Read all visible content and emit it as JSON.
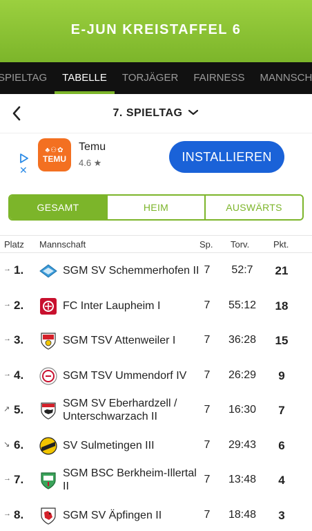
{
  "header": {
    "title": "E-JUN KREISTAFFEL 6"
  },
  "tabs": [
    {
      "label": "SPIELTAG",
      "active": false
    },
    {
      "label": "TABELLE",
      "active": true
    },
    {
      "label": "TORJÄGER",
      "active": false
    },
    {
      "label": "FAIRNESS",
      "active": false
    },
    {
      "label": "MANNSCHAFTEN",
      "active": false
    }
  ],
  "matchday": {
    "label": "7. SPIELTAG",
    "back_icon": "chevron-left-icon",
    "dropdown_icon": "chevron-down-icon"
  },
  "ad": {
    "app_name": "Temu",
    "logo_text": "TEMU",
    "rating": "4.6 ★",
    "cta": "INSTALLIEREN"
  },
  "segments": [
    {
      "label": "GESAMT",
      "active": true
    },
    {
      "label": "HEIM",
      "active": false
    },
    {
      "label": "AUSWÄRTS",
      "active": false
    }
  ],
  "table": {
    "headers": {
      "platz": "Platz",
      "mannschaft": "Mannschaft",
      "sp": "Sp.",
      "torv": "Torv.",
      "pkt": "Pkt."
    },
    "rows": [
      {
        "trend": "→",
        "rank": "1.",
        "team": "SGM SV Schemmerhofen II",
        "sp": "7",
        "torv": "52:7",
        "pkt": "21",
        "crest_color": "#3a9bd9"
      },
      {
        "trend": "→",
        "rank": "2.",
        "team": "FC Inter Laupheim I",
        "sp": "7",
        "torv": "55:12",
        "pkt": "18",
        "crest_color": "#c8102e"
      },
      {
        "trend": "→",
        "rank": "3.",
        "team": "SGM TSV Attenweiler I",
        "sp": "7",
        "torv": "36:28",
        "pkt": "15",
        "crest_color": "#d4202a"
      },
      {
        "trend": "→",
        "rank": "4.",
        "team": "SGM TSV Ummendorf IV",
        "sp": "7",
        "torv": "26:29",
        "pkt": "9",
        "crest_color": "#c8102e"
      },
      {
        "trend": "↗",
        "rank": "5.",
        "team_line1": "SGM SV Eberhardzell /",
        "team_line2": "Unterschwarzach II",
        "sp": "7",
        "torv": "16:30",
        "pkt": "7",
        "crest_color": "#d4202a"
      },
      {
        "trend": "↘",
        "rank": "6.",
        "team": "SV Sulmetingen III",
        "sp": "7",
        "torv": "29:43",
        "pkt": "6",
        "crest_color": "#f2c500"
      },
      {
        "trend": "→",
        "rank": "7.",
        "team_line1": "SGM BSC Berkheim-Illertal",
        "team_line2": "II",
        "sp": "7",
        "torv": "13:48",
        "pkt": "4",
        "crest_color": "#3aa35a"
      },
      {
        "trend": "→",
        "rank": "8.",
        "team": "SGM SV Äpfingen II",
        "sp": "7",
        "torv": "18:48",
        "pkt": "3",
        "crest_color": "#d4202a"
      }
    ]
  }
}
